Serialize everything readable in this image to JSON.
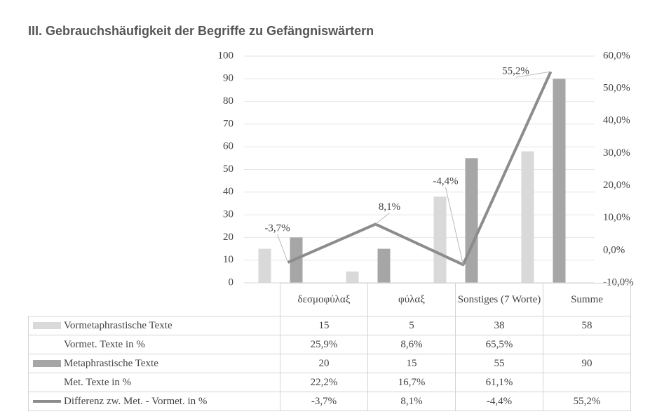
{
  "chart_data": {
    "type": "bar",
    "title": "III. Gebrauchshäufigkeit der Begriffe zu Gefängniswärtern",
    "categories": [
      "δεσμοφύλαξ",
      "φύλαξ",
      "Sonstiges (7 Worte)",
      "Summe"
    ],
    "series": [
      {
        "name": "Vormetaphrastische Texte",
        "color": "#d9d9d9",
        "values": [
          15,
          5,
          38,
          58
        ]
      },
      {
        "name": "Metaphrastische Texte",
        "color": "#a6a6a6",
        "values": [
          20,
          15,
          55,
          90
        ]
      },
      {
        "name": "Differenz zw. Met. - Vormet. in %",
        "type": "line",
        "axis": "y2",
        "color": "#8c8c8c",
        "values": [
          -3.7,
          8.1,
          -4.4,
          55.2
        ],
        "value_labels": [
          "-3,7%",
          "8,1%",
          "-4,4%",
          "55,2%"
        ]
      }
    ],
    "table_rows": [
      {
        "name": "Vormet. Texte in %",
        "values": [
          25.9,
          8.6,
          65.5,
          null
        ],
        "value_labels": [
          "25,9%",
          "8,6%",
          "65,5%",
          null
        ]
      },
      {
        "name": "Met. Texte in %",
        "values": [
          22.2,
          16.7,
          61.1,
          null
        ],
        "value_labels": [
          "22,2%",
          "16,7%",
          "61,1%",
          null
        ]
      }
    ],
    "ylim": [
      0,
      100
    ],
    "yticks": [
      0,
      10,
      20,
      30,
      40,
      50,
      60,
      70,
      80,
      90,
      100
    ],
    "y2lim": [
      -10,
      60
    ],
    "y2ticks": [
      {
        "value": -10,
        "label": "-10,0%"
      },
      {
        "value": 0,
        "label": "0,0%"
      },
      {
        "value": 10,
        "label": "10,0%"
      },
      {
        "value": 20,
        "label": "20,0%"
      },
      {
        "value": 30,
        "label": "30,0%"
      },
      {
        "value": 40,
        "label": "40,0%"
      },
      {
        "value": 50,
        "label": "50,0%"
      },
      {
        "value": 60,
        "label": "60,0%"
      }
    ],
    "grid": true
  }
}
